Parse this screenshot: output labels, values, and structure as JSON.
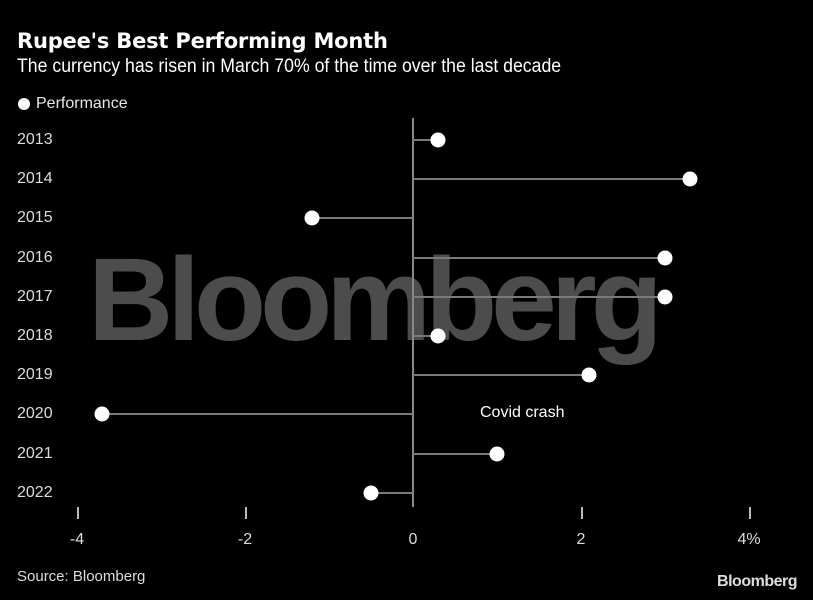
{
  "header": {
    "title": "Rupee's Best Performing Month",
    "subtitle": "The currency has risen in March 70% of the time over the last decade"
  },
  "legend": {
    "label": "Performance"
  },
  "watermark": "Bloomberg",
  "annotation": "Covid crash",
  "footer": {
    "source": "Source: Bloomberg",
    "brand": "Bloomberg"
  },
  "x_ticks": [
    "-4",
    "-2",
    "0",
    "2",
    "4%"
  ],
  "chart_data": {
    "type": "scatter",
    "subtype": "lollipop-horizontal",
    "title": "Rupee's Best Performing Month",
    "subtitle": "The currency has risen in March 70% of the time over the last decade",
    "categories": [
      "2013",
      "2014",
      "2015",
      "2016",
      "2017",
      "2018",
      "2019",
      "2020",
      "2021",
      "2022"
    ],
    "series": [
      {
        "name": "Performance",
        "values": [
          0.3,
          3.3,
          -1.2,
          3.0,
          3.0,
          0.3,
          2.1,
          -3.7,
          1.0,
          -0.5
        ]
      }
    ],
    "xlabel": "",
    "ylabel": "",
    "x_tick_labels": [
      "-4",
      "-2",
      "0",
      "2",
      "4%"
    ],
    "xlim": [
      -4,
      4
    ],
    "annotations": [
      {
        "text": "Covid crash",
        "category": "2020"
      }
    ],
    "legend_position": "top-left",
    "grid": false,
    "source": "Source: Bloomberg"
  }
}
